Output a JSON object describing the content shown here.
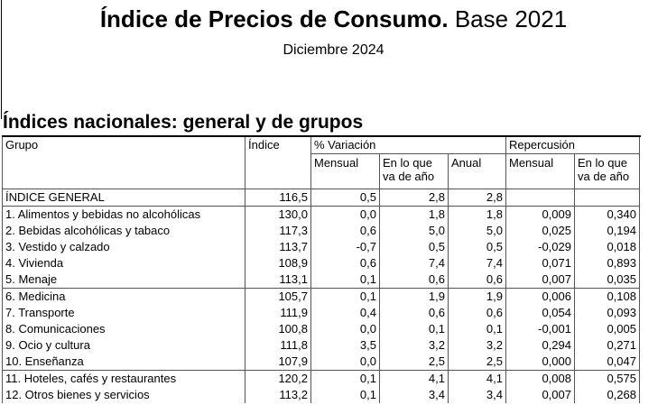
{
  "header": {
    "title_bold": "Índice de Precios de Consumo.",
    "title_rest": "Base 2021",
    "subtitle": "Diciembre 2024"
  },
  "section_title": "Índices nacionales: general y de grupos",
  "table": {
    "columns": {
      "group": "Grupo",
      "index": "Índice",
      "variation": "% Variación",
      "monthly": "Mensual",
      "ytd": "En lo que va de año",
      "annual": "Anual",
      "impact": "Repercusión",
      "impact_monthly": "Mensual",
      "impact_ytd": "En lo que va de año"
    },
    "rows": [
      {
        "group": "ÍNDICE GENERAL",
        "index": "116,5",
        "monthly": "0,5",
        "ytd": "2,8",
        "annual": "2,8"
      },
      {
        "group": "1. Alimentos y bebidas no alcohólicas",
        "index": "130,0",
        "monthly": "0,0",
        "ytd": "1,8",
        "annual": "1,8",
        "impact_monthly": "0,009",
        "impact_ytd": "0,340"
      },
      {
        "group": "2. Bebidas alcohólicas y tabaco",
        "index": "117,3",
        "monthly": "0,6",
        "ytd": "5,0",
        "annual": "5,0",
        "impact_monthly": "0,025",
        "impact_ytd": "0,194"
      },
      {
        "group": "3. Vestido y calzado",
        "index": "113,7",
        "monthly": "-0,7",
        "ytd": "0,5",
        "annual": "0,5",
        "impact_monthly": "-0,029",
        "impact_ytd": "0,018"
      },
      {
        "group": "4. Vivienda",
        "index": "108,9",
        "monthly": "0,6",
        "ytd": "7,4",
        "annual": "7,4",
        "impact_monthly": "0,071",
        "impact_ytd": "0,893"
      },
      {
        "group": "5. Menaje",
        "index": "113,1",
        "monthly": "0,1",
        "ytd": "0,6",
        "annual": "0,6",
        "impact_monthly": "0,007",
        "impact_ytd": "0,035"
      },
      {
        "group": "6. Medicina",
        "index": "105,7",
        "monthly": "0,1",
        "ytd": "1,9",
        "annual": "1,9",
        "impact_monthly": "0,006",
        "impact_ytd": "0,108"
      },
      {
        "group": "7. Transporte",
        "index": "111,9",
        "monthly": "0,4",
        "ytd": "0,6",
        "annual": "0,6",
        "impact_monthly": "0,054",
        "impact_ytd": "0,093"
      },
      {
        "group": "8. Comunicaciones",
        "index": "100,8",
        "monthly": "0,0",
        "ytd": "0,1",
        "annual": "0,1",
        "impact_monthly": "-0,001",
        "impact_ytd": "0,005"
      },
      {
        "group": "9. Ocio y cultura",
        "index": "111,8",
        "monthly": "3,5",
        "ytd": "3,2",
        "annual": "3,2",
        "impact_monthly": "0,294",
        "impact_ytd": "0,271"
      },
      {
        "group": "10. Enseñanza",
        "index": "107,9",
        "monthly": "0,0",
        "ytd": "2,5",
        "annual": "2,5",
        "impact_monthly": "0,000",
        "impact_ytd": "0,047"
      },
      {
        "group": "11. Hoteles, cafés y restaurantes",
        "index": "120,2",
        "monthly": "0,1",
        "ytd": "4,1",
        "annual": "4,1",
        "impact_monthly": "0,008",
        "impact_ytd": "0,575"
      },
      {
        "group": "12. Otros bienes y servicios",
        "index": "113,2",
        "monthly": "0,1",
        "ytd": "3,4",
        "annual": "3,4",
        "impact_monthly": "0,007",
        "impact_ytd": "0,268"
      }
    ]
  }
}
